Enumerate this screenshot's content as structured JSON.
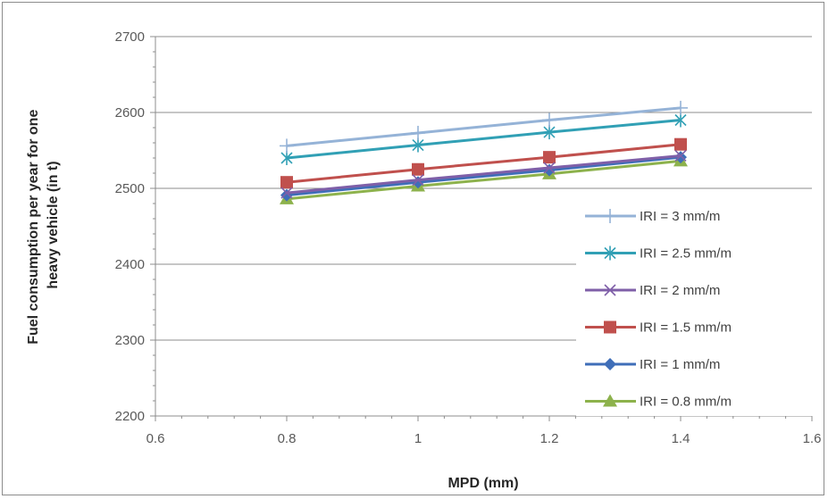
{
  "chart_data": {
    "type": "line",
    "xlabel": "MPD (mm)",
    "ylabel": "Fuel consumption per year for one heavy vehicle (in t)",
    "xlim": [
      0.6,
      1.6
    ],
    "ylim": [
      2200,
      2700
    ],
    "xticks": [
      "0.6",
      "0.8",
      "1",
      "1.2",
      "1.4",
      "1.6"
    ],
    "yticks": [
      "2200",
      "2300",
      "2400",
      "2500",
      "2600",
      "2700"
    ],
    "x": [
      0.8,
      1.0,
      1.2,
      1.4
    ],
    "grid": "horizontal",
    "legend_position": "right",
    "series": [
      {
        "name": "IRI = 3 mm/m",
        "values": [
          2556,
          2573,
          2590,
          2606
        ],
        "color": "#95b3d7",
        "marker": "plus"
      },
      {
        "name": "IRI = 2.5 mm/m",
        "values": [
          2540,
          2557,
          2574,
          2590
        ],
        "color": "#31a0b5",
        "marker": "star"
      },
      {
        "name": "IRI = 2 mm/m",
        "values": [
          2494,
          2511,
          2527,
          2543
        ],
        "color": "#7f5fa8",
        "marker": "x"
      },
      {
        "name": "IRI = 1.5 mm/m",
        "values": [
          2508,
          2525,
          2541,
          2558
        ],
        "color": "#c0504d",
        "marker": "square"
      },
      {
        "name": "IRI = 1 mm/m",
        "values": [
          2491,
          2508,
          2524,
          2541
        ],
        "color": "#3f6eb8",
        "marker": "diamond"
      },
      {
        "name": "IRI = 0.8 mm/m",
        "values": [
          2486,
          2503,
          2519,
          2536
        ],
        "color": "#8db24c",
        "marker": "triangle"
      }
    ]
  }
}
